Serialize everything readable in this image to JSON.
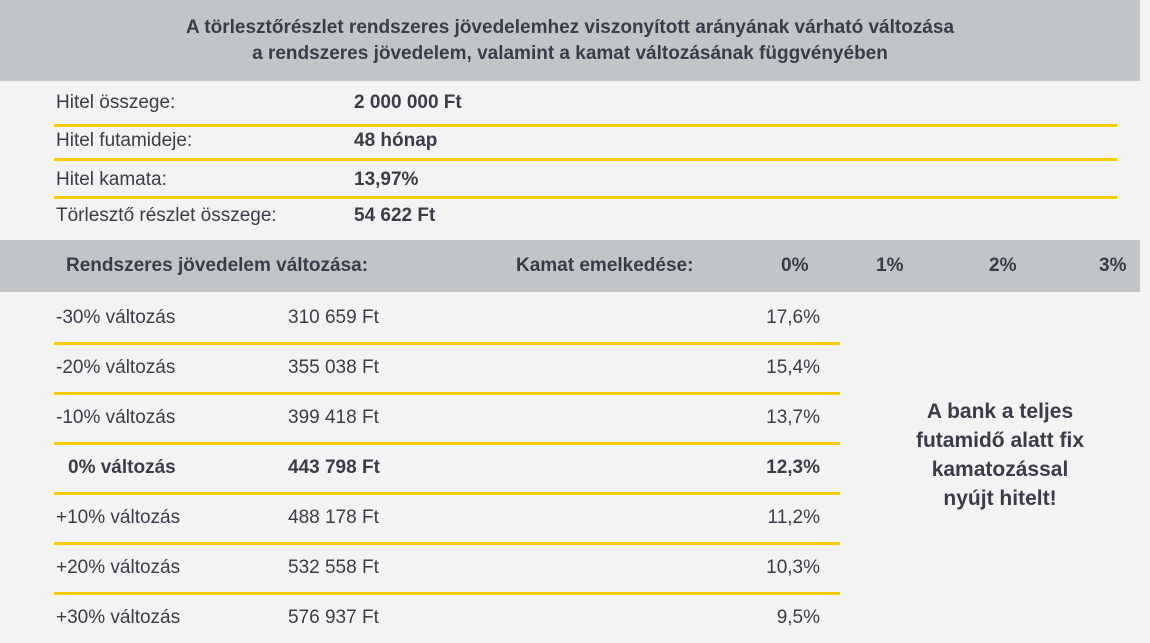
{
  "title": {
    "line1": "A törlesztőrészlet rendszeres jövedelemhez viszonyított arányának várható változása",
    "line2": "a rendszeres jövedelem, valamint a kamat változásának függvényében"
  },
  "loan_info": [
    {
      "label": "Hitel összege:",
      "value": "2 000 000 Ft"
    },
    {
      "label": "Hitel futamideje:",
      "value": "48 hónap"
    },
    {
      "label": "Hitel kamata:",
      "value": "13,97%"
    },
    {
      "label": "Törlesztő részlet összege:",
      "value": "54 622 Ft"
    }
  ],
  "table_header": {
    "income_change": "Rendszeres jövedelem változása:",
    "rate_increase": "Kamat emelkedése:",
    "rate_columns": [
      "0%",
      "1%",
      "2%",
      "3%"
    ]
  },
  "rows": [
    {
      "change": "-30% változás",
      "income": "310 659 Ft",
      "ratio": "17,6%"
    },
    {
      "change": "-20% változás",
      "income": "355 038 Ft",
      "ratio": "15,4%"
    },
    {
      "change": "-10% változás",
      "income": "399 418 Ft",
      "ratio": "13,7%"
    },
    {
      "change": "0% változás",
      "income": "443 798 Ft",
      "ratio": "12,3%"
    },
    {
      "change": "+10% változás",
      "income": "488 178 Ft",
      "ratio": "11,2%"
    },
    {
      "change": "+20% változás",
      "income": "532 558 Ft",
      "ratio": "10,3%"
    },
    {
      "change": "+30% változás",
      "income": "576 937 Ft",
      "ratio": "9,5%"
    }
  ],
  "note": {
    "line1": "A bank a teljes",
    "line2": "futamidő alatt fix",
    "line3": "kamatozással",
    "line4": "nyújt hitelt!"
  },
  "colors": {
    "header_bg": "#c1c5c8",
    "accent_line": "#f8cc00",
    "page_bg": "#f2f3f2",
    "text": "#3b3c4a"
  }
}
